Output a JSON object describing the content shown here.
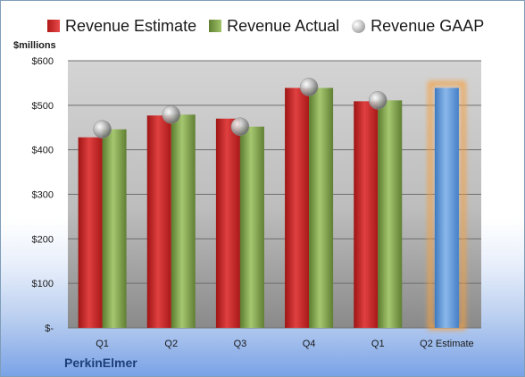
{
  "legend": {
    "estimate": "Revenue Estimate",
    "actual": "Revenue Actual",
    "gaap": "Revenue GAAP"
  },
  "units": "$millions",
  "company": "PerkinElmer",
  "chart_data": {
    "type": "bar",
    "categories": [
      "Q1",
      "Q2",
      "Q3",
      "Q4",
      "Q1",
      "Q2 Estimate"
    ],
    "series": [
      {
        "name": "Revenue Estimate",
        "values": [
          428,
          477,
          470,
          539,
          509,
          null
        ]
      },
      {
        "name": "Revenue Actual",
        "values": [
          446,
          479,
          452,
          539,
          511,
          539
        ]
      },
      {
        "name": "Revenue GAAP",
        "type": "marker",
        "values": [
          446,
          479,
          452,
          541,
          511,
          null
        ]
      }
    ],
    "highlighted_category": "Q2 Estimate",
    "ylim": [
      0,
      600
    ],
    "yticks": [
      0,
      100,
      200,
      300,
      400,
      500,
      600
    ],
    "ytick_labels": [
      "$-",
      "$100",
      "$200",
      "$300",
      "$400",
      "$500",
      "$600"
    ],
    "grid": true,
    "legend_position": "top",
    "colors": {
      "estimate": "#cc2626",
      "actual": "#84a65a",
      "gaap": "#b4b4b4",
      "projection": "#5b9bd5",
      "projection_glow": "#f5a040"
    }
  }
}
